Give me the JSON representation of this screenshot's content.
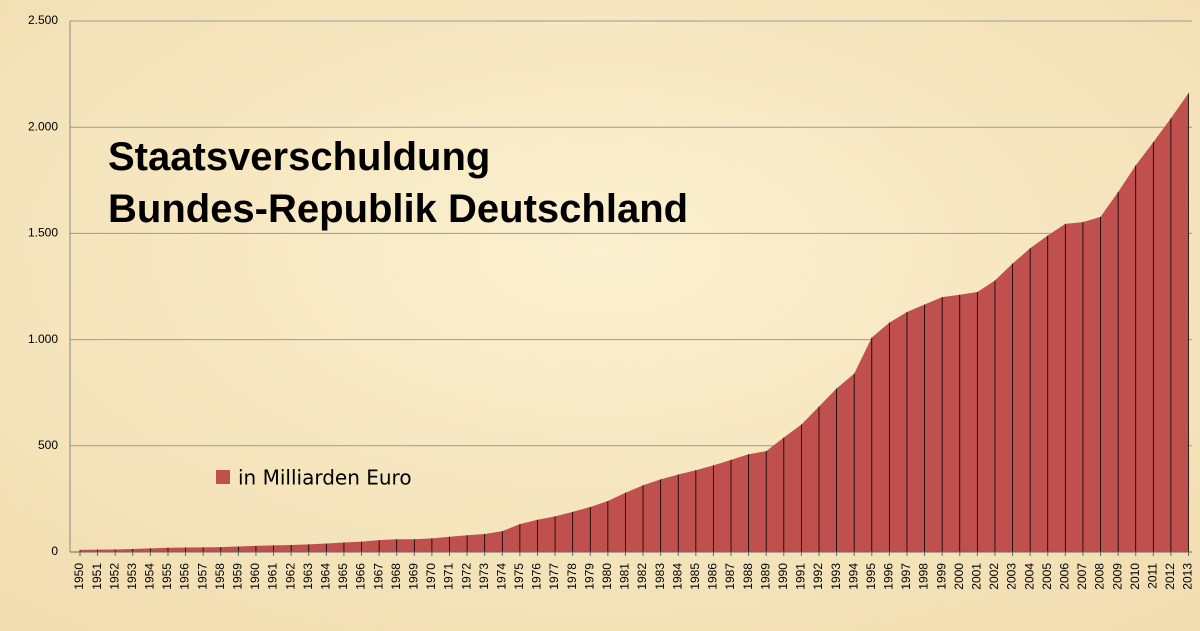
{
  "chart_data": {
    "type": "area",
    "title": "Staatsverschuldung",
    "subtitle": "Bundes-Republik Deutschland",
    "categories": [
      "1950",
      "1951",
      "1952",
      "1953",
      "1954",
      "1955",
      "1956",
      "1957",
      "1958",
      "1959",
      "1960",
      "1961",
      "1962",
      "1963",
      "1964",
      "1965",
      "1966",
      "1967",
      "1968",
      "1969",
      "1970",
      "1971",
      "1972",
      "1973",
      "1974",
      "1975",
      "1976",
      "1977",
      "1978",
      "1979",
      "1980",
      "1981",
      "1982",
      "1983",
      "1984",
      "1985",
      "1986",
      "1987",
      "1988",
      "1989",
      "1990",
      "1991",
      "1992",
      "1993",
      "1994",
      "1995",
      "1996",
      "1997",
      "1998",
      "1999",
      "2000",
      "2001",
      "2002",
      "2003",
      "2004",
      "2005",
      "2006",
      "2007",
      "2008",
      "2009",
      "2010",
      "2011",
      "2012",
      "2013"
    ],
    "series": [
      {
        "name": "in Milliarden Euro",
        "color": "#c0504d",
        "values": [
          10,
          11,
          12,
          14,
          17,
          20,
          21,
          22,
          23,
          26,
          29,
          31,
          33,
          36,
          40,
          45,
          49,
          56,
          60,
          60,
          64,
          72,
          79,
          85,
          98,
          131,
          152,
          168,
          189,
          212,
          240,
          279,
          314,
          342,
          365,
          385,
          408,
          434,
          460,
          475,
          539,
          600,
          685,
          770,
          840,
          1010,
          1080,
          1130,
          1165,
          1200,
          1211,
          1224,
          1278,
          1358,
          1430,
          1490,
          1545,
          1553,
          1578,
          1695,
          1820,
          1930,
          2042,
          2160
        ]
      }
    ],
    "ylim": [
      0,
      2500
    ],
    "yticks": [
      0,
      500,
      {
        "value": 1000,
        "label": "1.000"
      },
      {
        "value": 1500,
        "label": "1.500"
      },
      {
        "value": 2000,
        "label": "2.000"
      },
      {
        "value": 2500,
        "label": "2.500"
      }
    ],
    "grid": true
  }
}
